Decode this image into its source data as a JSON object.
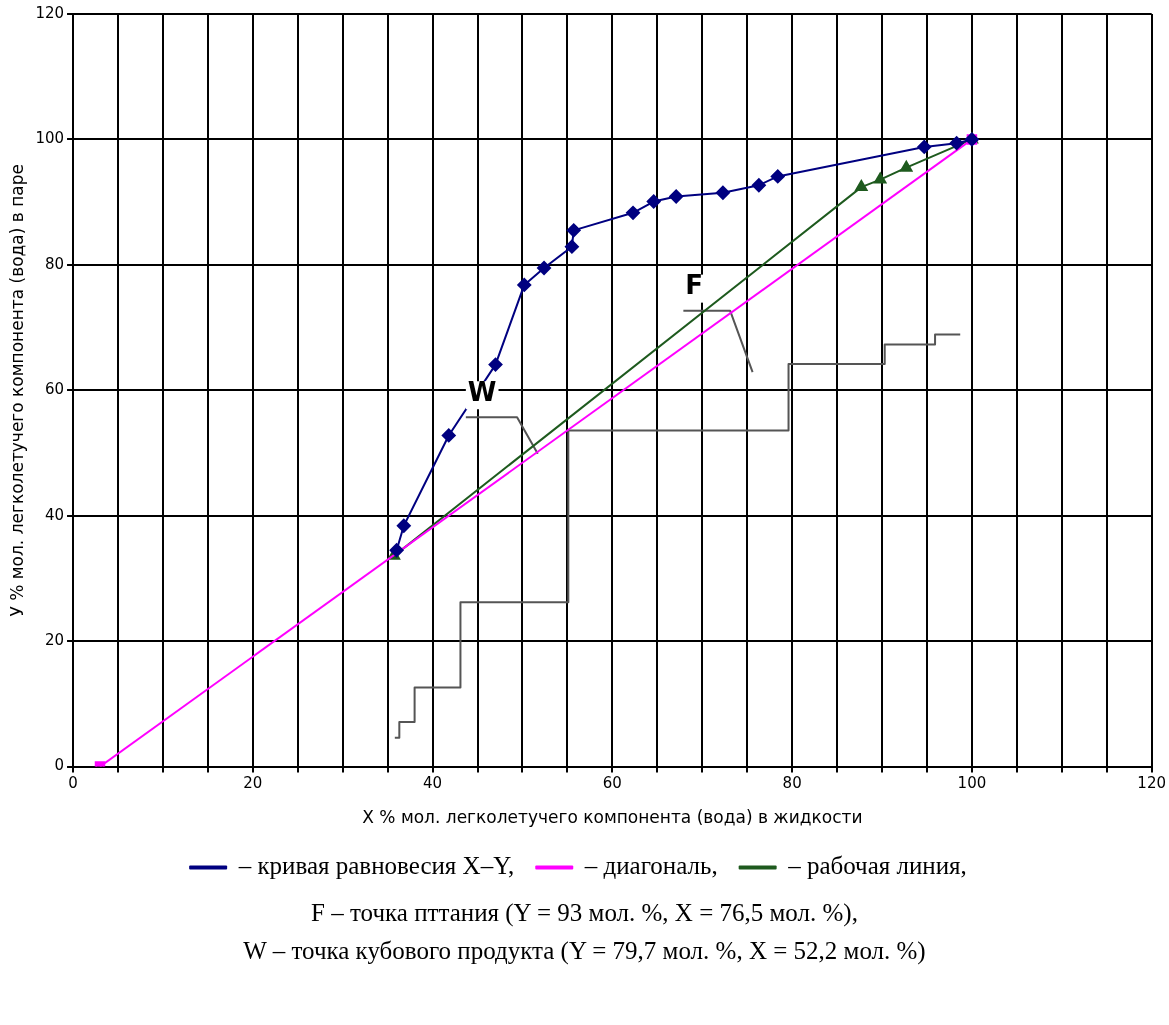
{
  "chart_data": {
    "type": "line",
    "xlabel": "X % мол. легколетучего компонента (вода) в жидкости",
    "ylabel": "У % мол. легколетучего компонента (вода) в паре",
    "xlim": [
      0,
      120
    ],
    "xticks": [
      0,
      {
        "value": 5,
        "label": null
      },
      {
        "value": 10,
        "label": null
      },
      {
        "value": 15,
        "label": null
      },
      20,
      {
        "value": 25,
        "label": null
      },
      {
        "value": 30,
        "label": null
      },
      {
        "value": 35,
        "label": null
      },
      40,
      {
        "value": 45,
        "label": null
      },
      {
        "value": 50,
        "label": null
      },
      {
        "value": 55,
        "label": null
      },
      60,
      {
        "value": 65,
        "label": null
      },
      {
        "value": 70,
        "label": null
      },
      {
        "value": 75,
        "label": null
      },
      80,
      {
        "value": 85,
        "label": null
      },
      {
        "value": 90,
        "label": null
      },
      {
        "value": 95,
        "label": null
      },
      100,
      {
        "value": 105,
        "label": null
      },
      {
        "value": 110,
        "label": null
      },
      {
        "value": 115,
        "label": null
      },
      120
    ],
    "ylim": [
      0,
      120
    ],
    "yticks": [
      0,
      20,
      40,
      60,
      80,
      100,
      120
    ],
    "grid": true,
    "legend": "bottom",
    "series": [
      {
        "name": "– кривая равновесия X–Y,",
        "color": "#000080",
        "marker": "diamond",
        "x": [
          36,
          36.8,
          41.8,
          47.0,
          50.2,
          52.4,
          55.5,
          55.7,
          62.3,
          64.6,
          67.1,
          72.3,
          76.3,
          78.4,
          94.7,
          98.3,
          100
        ],
        "values": [
          34.5,
          38.4,
          52.8,
          64.1,
          76.8,
          79.5,
          82.9,
          85.5,
          88.3,
          90.1,
          90.9,
          91.5,
          92.7,
          94.1,
          98.8,
          99.4,
          100
        ]
      },
      {
        "name": "– диагональ,",
        "color": "#ff00ff",
        "marker": "square",
        "x": [
          3,
          100
        ],
        "values": [
          0,
          100
        ]
      },
      {
        "name": "– рабочая линия,",
        "color": "#1e5a1e",
        "marker": "triangle",
        "x": [
          35.7,
          87.7,
          89.8,
          92.7,
          100
        ],
        "values": [
          33.6,
          92.4,
          93.6,
          95.5,
          100
        ]
      },
      {
        "color": "#555555",
        "marker": "none",
        "x": [
          35.8,
          36.3,
          36.3,
          38.0,
          38.0,
          43.1,
          43.1,
          55.1,
          55.1,
          79.6,
          79.6,
          90.3,
          90.3,
          95.9,
          95.9,
          98.7
        ],
        "values": [
          4.6,
          4.6,
          7.1,
          7.1,
          12.6,
          12.6,
          26.2,
          26.2,
          53.6,
          53.6,
          64.2,
          64.2,
          67.3,
          67.3,
          68.9,
          68.9
        ]
      },
      {
        "color": "#555555",
        "marker": "none",
        "x": [
          43.7,
          49.4,
          51.7
        ],
        "values": [
          55.7,
          55.7,
          49.9
        ]
      },
      {
        "color": "#555555",
        "marker": "none",
        "x": [
          67.9,
          73.1,
          75.6
        ],
        "values": [
          72.7,
          72.7,
          62.9
        ]
      }
    ],
    "annotations": [
      {
        "text": "W",
        "x": 43.7,
        "y": 55.7
      },
      {
        "text": "F",
        "x": 67.9,
        "y": 72.7
      },
      "F – точка пттания (Y = 93 мол. %, X = 76,5 мол. %),",
      "W – точка кубового продукта (Y = 79,7 мол. %, X = 52,2 мол. %)"
    ]
  }
}
